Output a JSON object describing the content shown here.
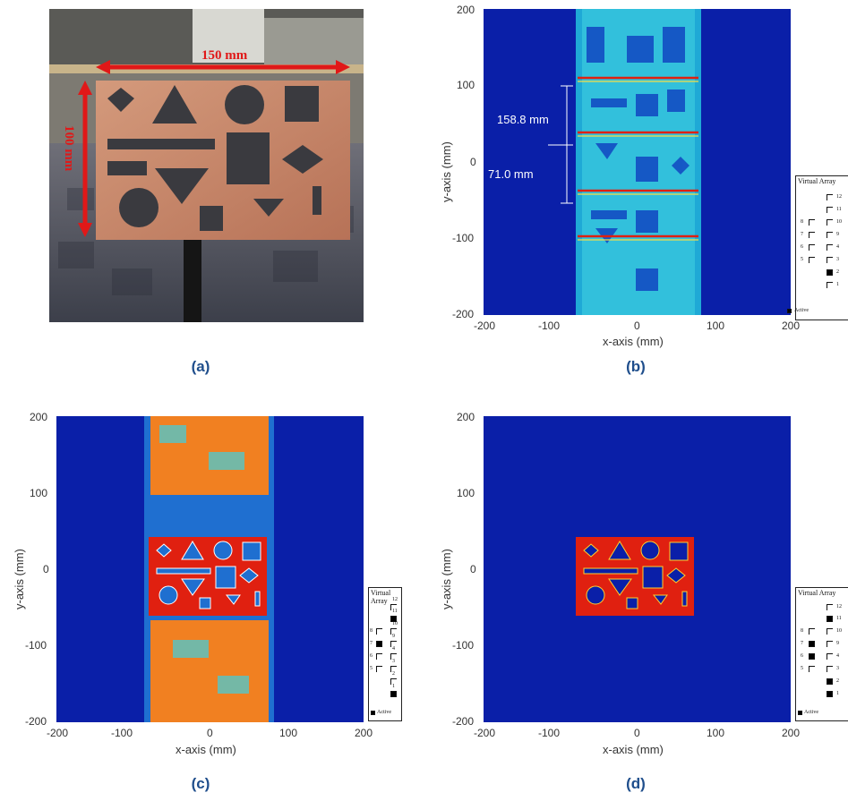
{
  "panels": {
    "a": {
      "caption": "(a)",
      "dim_width": "150 mm",
      "dim_height": "100 mm"
    },
    "b": {
      "caption": "(b)",
      "annot_1": "158.8 mm",
      "annot_2": "71.0 mm"
    },
    "c": {
      "caption": "(c)"
    },
    "d": {
      "caption": "(d)"
    }
  },
  "axes": {
    "xlabel": "x-axis (mm)",
    "ylabel": "y-axis (mm)",
    "xticks": [
      "-200",
      "-100",
      "0",
      "100",
      "200"
    ],
    "yticks": [
      "200",
      "100",
      "0",
      "-100",
      "-200"
    ]
  },
  "legend": {
    "title": "Virtual Array",
    "labels": [
      "12",
      "11",
      "10",
      "9",
      "4",
      "3",
      "2",
      "1"
    ],
    "left_labels": [
      "8",
      "7",
      "6",
      "5"
    ],
    "footer": "Active"
  },
  "colors": {
    "caption": "#1f4e8c",
    "background": "#0a1fa8",
    "hot": "#e02010",
    "arrow": "#e01818"
  }
}
